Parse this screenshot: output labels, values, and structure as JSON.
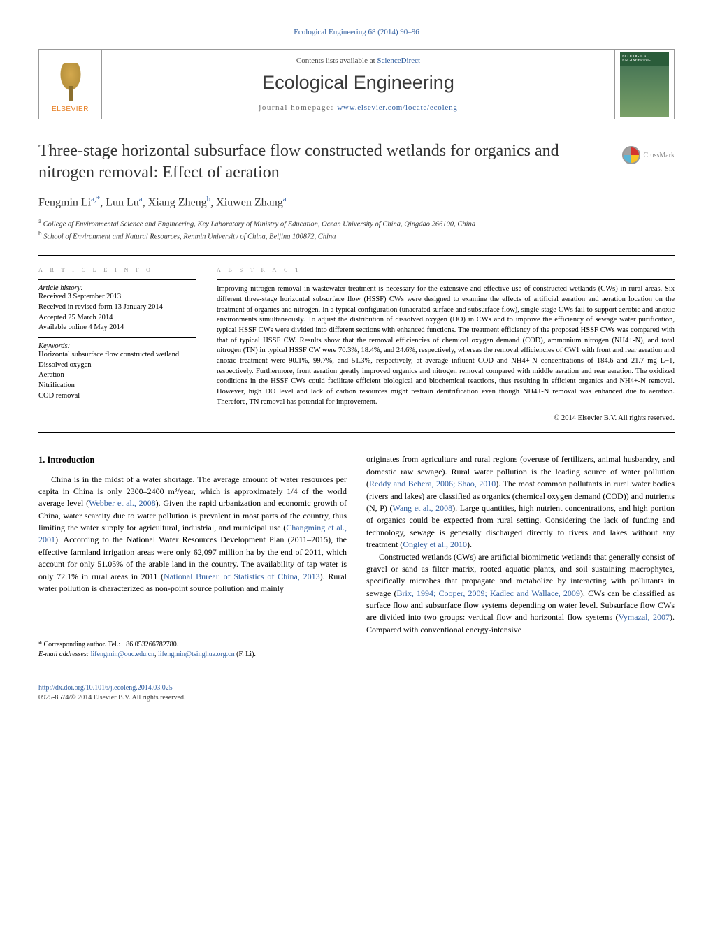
{
  "journal_ref": "Ecological Engineering 68 (2014) 90–96",
  "header": {
    "contents_prefix": "Contents lists available at ",
    "contents_link": "ScienceDirect",
    "journal_title": "Ecological Engineering",
    "homepage_prefix": "journal homepage: ",
    "homepage_url": "www.elsevier.com/locate/ecoleng",
    "publisher_logo_text": "ELSEVIER",
    "cover_text": "ECOLOGICAL ENGINEERING"
  },
  "article": {
    "title": "Three-stage horizontal subsurface flow constructed wetlands for organics and nitrogen removal: Effect of aeration",
    "crossmark_label": "CrossMark",
    "authors_html": "Fengmin Li<sup>a,*</sup>, Lun Lu<sup>a</sup>, Xiang Zheng<sup>b</sup>, Xiuwen Zhang<sup>a</sup>",
    "affiliations": [
      "a College of Environmental Science and Engineering, Key Laboratory of Ministry of Education, Ocean University of China, Qingdao 266100, China",
      "b School of Environment and Natural Resources, Renmin University of China, Beijing 100872, China"
    ]
  },
  "info": {
    "heading": "a r t i c l e   i n f o",
    "history_label": "Article history:",
    "history": [
      "Received 3 September 2013",
      "Received in revised form 13 January 2014",
      "Accepted 25 March 2014",
      "Available online 4 May 2014"
    ],
    "keywords_label": "Keywords:",
    "keywords": [
      "Horizontal subsurface flow constructed wetland",
      "Dissolved oxygen",
      "Aeration",
      "Nitrification",
      "COD removal"
    ]
  },
  "abstract": {
    "heading": "a b s t r a c t",
    "text": "Improving nitrogen removal in wastewater treatment is necessary for the extensive and effective use of constructed wetlands (CWs) in rural areas. Six different three-stage horizontal subsurface flow (HSSF) CWs were designed to examine the effects of artificial aeration and aeration location on the treatment of organics and nitrogen. In a typical configuration (unaerated surface and subsurface flow), single-stage CWs fail to support aerobic and anoxic environments simultaneously. To adjust the distribution of dissolved oxygen (DO) in CWs and to improve the efficiency of sewage water purification, typical HSSF CWs were divided into different sections with enhanced functions. The treatment efficiency of the proposed HSSF CWs was compared with that of typical HSSF CW. Results show that the removal efficiencies of chemical oxygen demand (COD), ammonium nitrogen (NH4+-N), and total nitrogen (TN) in typical HSSF CW were 70.3%, 18.4%, and 24.6%, respectively, whereas the removal efficiencies of CW1 with front and rear aeration and anoxic treatment were 90.1%, 99.7%, and 51.3%, respectively, at average influent COD and NH4+-N concentrations of 184.6 and 21.7 mg L−1, respectively. Furthermore, front aeration greatly improved organics and nitrogen removal compared with middle aeration and rear aeration. The oxidized conditions in the HSSF CWs could facilitate efficient biological and biochemical reactions, thus resulting in efficient organics and NH4+-N removal. However, high DO level and lack of carbon resources might restrain denitrification even though NH4+-N removal was enhanced due to aeration. Therefore, TN removal has potential for improvement.",
    "copyright": "© 2014 Elsevier B.V. All rights reserved."
  },
  "body": {
    "section_number": "1.",
    "section_title": "Introduction",
    "col1_p1_a": "China is in the midst of a water shortage. The average amount of water resources per capita in China is only 2300–2400 m³/year, which is approximately 1/4 of the world average level (",
    "col1_link1": "Webber et al., 2008",
    "col1_p1_b": "). Given the rapid urbanization and economic growth of China, water scarcity due to water pollution is prevalent in most parts of the country, thus limiting the water supply for agricultural, industrial, and municipal use (",
    "col1_link2": "Changming et al., 2001",
    "col1_p1_c": "). According to the National Water Resources Development Plan (2011–2015), the effective farmland irrigation areas were only 62,097 million ha by the end of 2011, which account for only 51.05% of the arable land in the country. The availability of tap water is only 72.1% in rural areas in 2011 (",
    "col1_link3": "National Bureau of Statistics of China, 2013",
    "col1_p1_d": "). Rural water pollution is characterized as non-point source pollution and mainly",
    "col2_p1_a": "originates from agriculture and rural regions (overuse of fertilizers, animal husbandry, and domestic raw sewage). Rural water pollution is the leading source of water pollution (",
    "col2_link1": "Reddy and Behera, 2006; Shao, 2010",
    "col2_p1_b": "). The most common pollutants in rural water bodies (rivers and lakes) are classified as organics (chemical oxygen demand (COD)) and nutrients (N, P) (",
    "col2_link2": "Wang et al., 2008",
    "col2_p1_c": "). Large quantities, high nutrient concentrations, and high portion of organics could be expected from rural setting. Considering the lack of funding and technology, sewage is generally discharged directly to rivers and lakes without any treatment (",
    "col2_link3": "Ongley et al., 2010",
    "col2_p1_d": ").",
    "col2_p2_a": "Constructed wetlands (CWs) are artificial biomimetic wetlands that generally consist of gravel or sand as filter matrix, rooted aquatic plants, and soil sustaining macrophytes, specifically microbes that propagate and metabolize by interacting with pollutants in sewage (",
    "col2_link4": "Brix, 1994; Cooper, 2009; Kadlec and Wallace, 2009",
    "col2_p2_b": "). CWs can be classified as surface flow and subsurface flow systems depending on water level. Subsurface flow CWs are divided into two groups: vertical flow and horizontal flow systems (",
    "col2_link5": "Vymazal, 2007",
    "col2_p2_c": "). Compared with conventional energy-intensive"
  },
  "footnotes": {
    "corresponding": "* Corresponding author. Tel.: +86 053266782780.",
    "email_label": "E-mail addresses:",
    "email1": "lifengmin@ouc.edu.cn",
    "email2": "lifengmin@tsinghua.org.cn",
    "email_suffix": " (F. Li)."
  },
  "doi": {
    "url": "http://dx.doi.org/10.1016/j.ecoleng.2014.03.025",
    "issn_line": "0925-8574/© 2014 Elsevier B.V. All rights reserved."
  },
  "colors": {
    "link": "#2e5c9e",
    "text": "#000000",
    "muted": "#888888",
    "elsevier_orange": "#e67e22"
  }
}
